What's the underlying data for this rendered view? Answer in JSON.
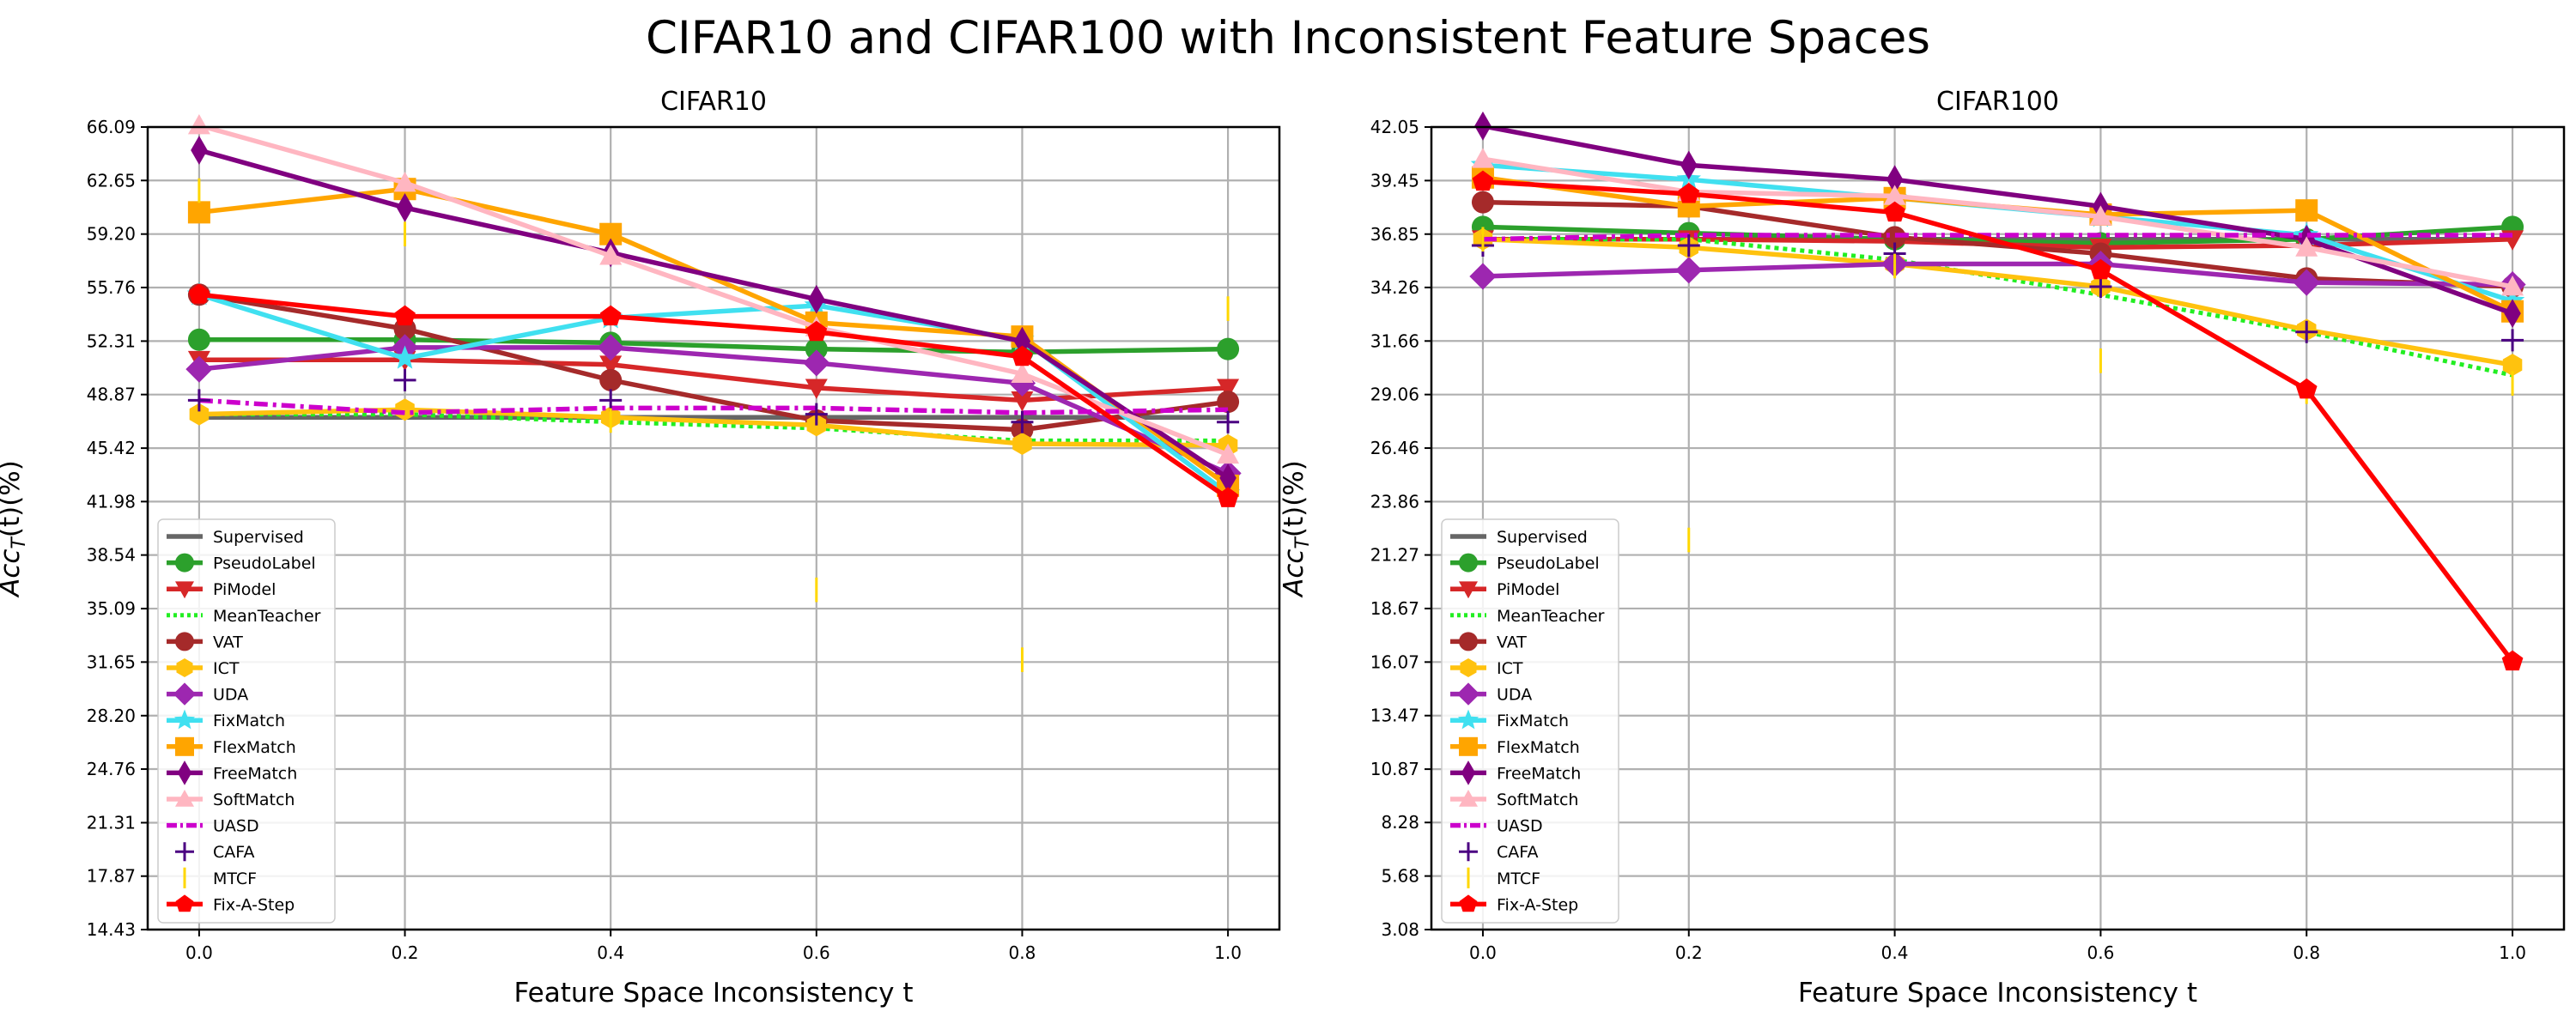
{
  "figure": {
    "title": "CIFAR10 and CIFAR100 with Inconsistent Feature Spaces"
  },
  "series_styles": [
    {
      "name": "Supervised",
      "color": "#666666",
      "marker": "none",
      "linestyle": "solid"
    },
    {
      "name": "PseudoLabel",
      "color": "#2ca02c",
      "marker": "circle",
      "linestyle": "solid"
    },
    {
      "name": "PiModel",
      "color": "#d62728",
      "marker": "triangle-down",
      "linestyle": "solid"
    },
    {
      "name": "MeanTeacher",
      "color": "#22ee22",
      "marker": "none",
      "linestyle": "dotted"
    },
    {
      "name": "VAT",
      "color": "#a52a2a",
      "marker": "circle",
      "linestyle": "solid"
    },
    {
      "name": "ICT",
      "color": "#ffc20e",
      "marker": "hexagon",
      "linestyle": "solid"
    },
    {
      "name": "UDA",
      "color": "#9d27b0",
      "marker": "diamond",
      "linestyle": "solid"
    },
    {
      "name": "FixMatch",
      "color": "#40e0f0",
      "marker": "star",
      "linestyle": "solid"
    },
    {
      "name": "FlexMatch",
      "color": "#ffa500",
      "marker": "square",
      "linestyle": "solid"
    },
    {
      "name": "FreeMatch",
      "color": "#800080",
      "marker": "thin-diamond",
      "linestyle": "solid"
    },
    {
      "name": "SoftMatch",
      "color": "#ffb6c1",
      "marker": "triangle-up",
      "linestyle": "solid"
    },
    {
      "name": "UASD",
      "color": "#cc00cc",
      "marker": "none",
      "linestyle": "dashdot"
    },
    {
      "name": "CAFA",
      "color": "#4b0082",
      "marker": "plus",
      "linestyle": "none"
    },
    {
      "name": "MTCF",
      "color": "#ffd700",
      "marker": "vline",
      "linestyle": "none"
    },
    {
      "name": "Fix-A-Step",
      "color": "#ff0000",
      "marker": "pentagon",
      "linestyle": "solid"
    }
  ],
  "chart_data": [
    {
      "type": "line",
      "title": "CIFAR10",
      "xlabel": "Feature Space Inconsistency t",
      "ylabel": "Acc_T(t)(%)",
      "ylabel_main": "Acc",
      "ylabel_sub": "T",
      "ylabel_tail": "(t)(%)",
      "x": [
        0.0,
        0.2,
        0.4,
        0.6,
        0.8,
        1.0
      ],
      "x_tick_labels": [
        "0.0",
        "0.2",
        "0.4",
        "0.6",
        "0.8",
        "1.0"
      ],
      "y_ticks": [
        "14.43",
        "17.87",
        "21.31",
        "24.76",
        "28.20",
        "31.65",
        "35.09",
        "38.54",
        "41.98",
        "45.42",
        "48.87",
        "52.31",
        "55.76",
        "59.20",
        "62.65",
        "66.09"
      ],
      "xlim": [
        -0.05,
        1.05
      ],
      "ylim": [
        14.43,
        66.09
      ],
      "grid": true,
      "legend_position": "lower-left",
      "series": [
        {
          "name": "Supervised",
          "values": [
            47.4,
            47.4,
            47.4,
            47.4,
            47.4,
            47.4
          ]
        },
        {
          "name": "PseudoLabel",
          "values": [
            52.4,
            52.4,
            52.2,
            51.8,
            51.6,
            51.8
          ]
        },
        {
          "name": "PiModel",
          "values": [
            51.1,
            51.1,
            50.8,
            49.3,
            48.5,
            49.3
          ]
        },
        {
          "name": "MeanTeacher",
          "values": [
            47.6,
            47.6,
            47.1,
            46.7,
            45.9,
            45.9
          ]
        },
        {
          "name": "VAT",
          "values": [
            55.3,
            53.1,
            49.8,
            47.2,
            46.6,
            48.4
          ]
        },
        {
          "name": "ICT",
          "values": [
            47.6,
            47.9,
            47.4,
            46.9,
            45.7,
            45.6
          ]
        },
        {
          "name": "UDA",
          "values": [
            50.5,
            51.9,
            51.9,
            50.9,
            49.6,
            43.8
          ]
        },
        {
          "name": "FixMatch",
          "values": [
            55.3,
            51.2,
            53.8,
            54.6,
            52.4,
            42.5
          ]
        },
        {
          "name": "FlexMatch",
          "values": [
            60.6,
            62.1,
            59.2,
            53.5,
            52.6,
            43.0
          ]
        },
        {
          "name": "FreeMatch",
          "values": [
            64.6,
            60.9,
            58.0,
            55.0,
            52.3,
            43.5
          ]
        },
        {
          "name": "SoftMatch",
          "values": [
            66.2,
            62.5,
            57.8,
            53.2,
            50.2,
            45.0
          ]
        },
        {
          "name": "UASD",
          "values": [
            48.5,
            47.7,
            48.0,
            48.0,
            47.7,
            47.9
          ]
        },
        {
          "name": "CAFA",
          "values": [
            48.5,
            49.8,
            48.5,
            47.6,
            47.1,
            47.1
          ]
        },
        {
          "name": "MTCF",
          "values": [
            62.0,
            59.2,
            47.2,
            36.3,
            31.8,
            54.4
          ]
        },
        {
          "name": "Fix-A-Step",
          "values": [
            55.3,
            53.9,
            53.9,
            52.9,
            51.3,
            42.2
          ]
        }
      ]
    },
    {
      "type": "line",
      "title": "CIFAR100",
      "xlabel": "Feature Space Inconsistency t",
      "ylabel": "Acc_T(t)(%)",
      "ylabel_main": "Acc",
      "ylabel_sub": "T",
      "ylabel_tail": "(t)(%)",
      "x": [
        0.0,
        0.2,
        0.4,
        0.6,
        0.8,
        1.0
      ],
      "x_tick_labels": [
        "0.0",
        "0.2",
        "0.4",
        "0.6",
        "0.8",
        "1.0"
      ],
      "y_ticks": [
        "3.08",
        "5.68",
        "8.28",
        "10.87",
        "13.47",
        "16.07",
        "18.67",
        "21.27",
        "23.86",
        "26.46",
        "29.06",
        "31.66",
        "34.26",
        "36.85",
        "39.45",
        "42.05"
      ],
      "xlim": [
        -0.05,
        1.05
      ],
      "ylim": [
        3.08,
        42.05
      ],
      "grid": true,
      "legend_position": "lower-left",
      "series": [
        {
          "name": "Supervised",
          "values": [
            36.6,
            36.6,
            36.6,
            36.6,
            36.6,
            36.6
          ]
        },
        {
          "name": "PseudoLabel",
          "values": [
            37.2,
            36.9,
            36.6,
            36.4,
            36.6,
            37.2
          ]
        },
        {
          "name": "PiModel",
          "values": [
            36.6,
            36.6,
            36.5,
            36.2,
            36.3,
            36.6
          ]
        },
        {
          "name": "MeanTeacher",
          "values": [
            36.6,
            36.6,
            35.6,
            33.9,
            32.1,
            30.0
          ]
        },
        {
          "name": "VAT",
          "values": [
            38.4,
            38.2,
            36.7,
            35.9,
            34.7,
            34.3
          ]
        },
        {
          "name": "ICT",
          "values": [
            36.6,
            36.2,
            35.4,
            34.3,
            32.2,
            30.5
          ]
        },
        {
          "name": "UDA",
          "values": [
            34.8,
            35.1,
            35.4,
            35.4,
            34.5,
            34.4
          ]
        },
        {
          "name": "FixMatch",
          "values": [
            40.2,
            39.5,
            38.6,
            37.7,
            36.8,
            33.6
          ]
        },
        {
          "name": "FlexMatch",
          "values": [
            39.6,
            38.2,
            38.6,
            37.8,
            38.0,
            33.1
          ]
        },
        {
          "name": "FreeMatch",
          "values": [
            42.1,
            40.2,
            39.5,
            38.2,
            36.6,
            33.0
          ]
        },
        {
          "name": "SoftMatch",
          "values": [
            40.5,
            38.9,
            38.7,
            37.7,
            36.2,
            34.3
          ]
        },
        {
          "name": "UASD",
          "values": [
            36.6,
            36.8,
            36.8,
            36.8,
            36.8,
            36.8
          ]
        },
        {
          "name": "CAFA",
          "values": [
            36.3,
            36.3,
            35.9,
            34.3,
            32.1,
            31.7
          ]
        },
        {
          "name": "MTCF",
          "values": [
            36.6,
            22.0,
            35.3,
            30.7,
            29.2,
            29.6
          ]
        },
        {
          "name": "Fix-A-Step",
          "values": [
            39.4,
            38.8,
            37.9,
            35.1,
            29.3,
            16.1
          ]
        }
      ]
    }
  ]
}
